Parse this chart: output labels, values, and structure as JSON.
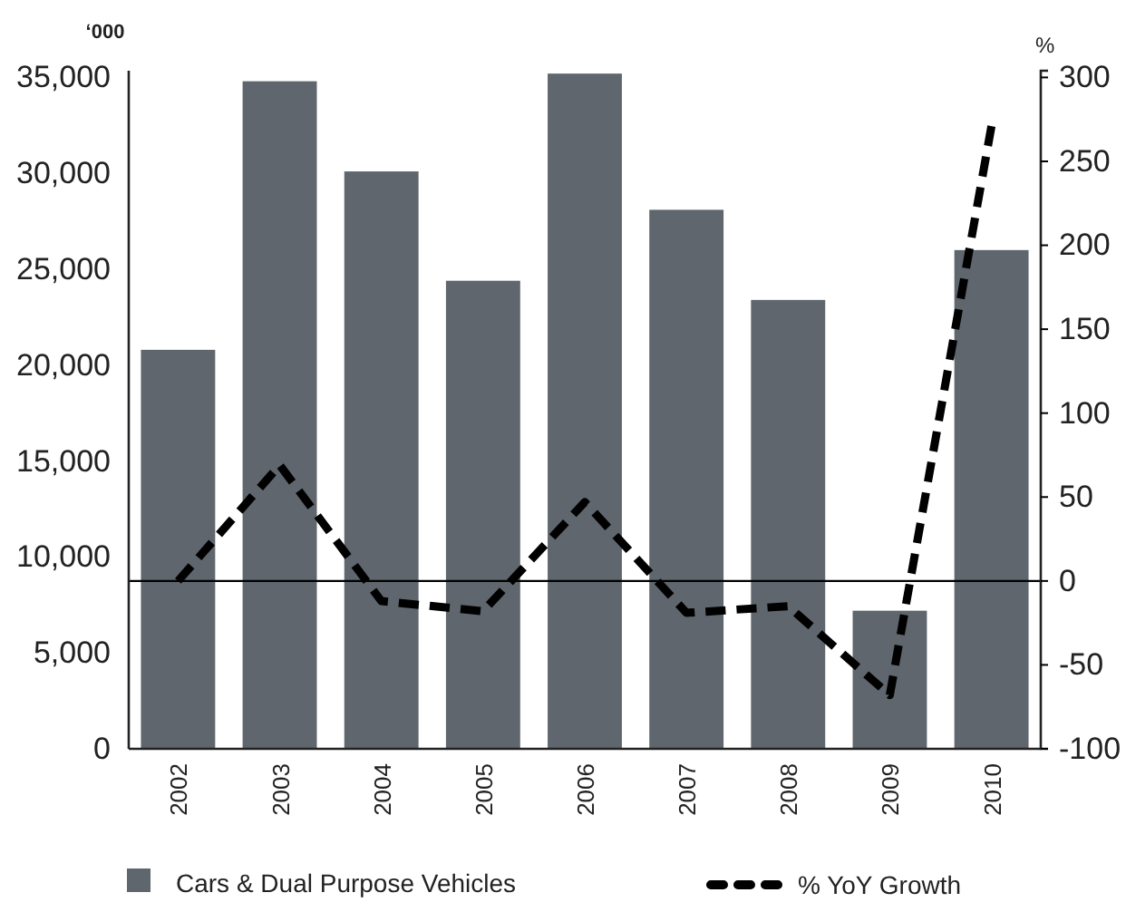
{
  "chart_data": {
    "type": "bar",
    "ylabel": "‘000",
    "y2label": "%",
    "categories": [
      "2002",
      "2003",
      "2004",
      "2005",
      "2006",
      "2007",
      "2008",
      "2009",
      "2010"
    ],
    "series": [
      {
        "name": "Cars & Dual Purpose Vehicles",
        "color": "#5f666d",
        "values": [
          20800,
          34800,
          30100,
          24400,
          35200,
          28100,
          23400,
          7200,
          26000
        ]
      },
      {
        "name": "% YoY Growth",
        "type": "line",
        "axis": "y2",
        "color": "#000000",
        "line_style": "dashed",
        "values": [
          0,
          69,
          -12,
          -18,
          47,
          -19,
          -15,
          -68,
          271
        ]
      }
    ],
    "ylim": [
      0,
      35350
    ],
    "yticks": [
      0,
      {
        "value": 5000,
        "label": "5,000"
      },
      {
        "value": 10000,
        "label": "10,000"
      },
      {
        "value": 15000,
        "label": "15,000"
      },
      {
        "value": 20000,
        "label": "20,000"
      },
      {
        "value": 25000,
        "label": "25,000"
      },
      {
        "value": 30000,
        "label": "30,000"
      },
      {
        "value": 35000,
        "label": "35,000"
      }
    ],
    "y2lim": [
      -100,
      304
    ],
    "y2ticks": [
      -100,
      -50,
      0,
      50,
      100,
      150,
      200,
      250,
      300
    ],
    "ref_lines": [
      {
        "axis": "y2",
        "value": 0,
        "color": "#000000"
      }
    ],
    "legend": "bottom",
    "grid": false
  }
}
